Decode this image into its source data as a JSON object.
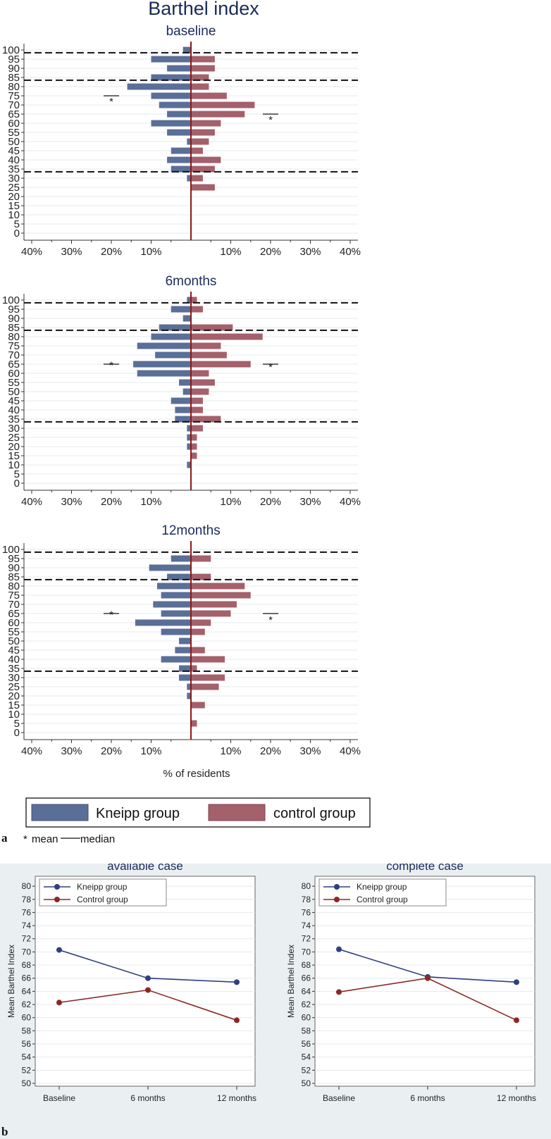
{
  "colors": {
    "kneipp": "#5a6f97",
    "control": "#a4606b",
    "median_line": "#8b1a1a",
    "navy": "#1b2a5c",
    "panel_b_bg": "#eaf0f2",
    "line_kneipp": "#2f3f7f",
    "line_control": "#8b2828"
  },
  "figure_a": {
    "title": "Barthel index",
    "panel_label": "a",
    "x_ticks_left": [
      "40%",
      "30%",
      "20%",
      "10%"
    ],
    "x_ticks_right": [
      "10%",
      "20%",
      "30%",
      "40%"
    ],
    "xlabel": "% of residents",
    "legend": {
      "kneipp": "Kneipp group",
      "control": "control group"
    },
    "footnote_mean_symbol": "*",
    "footnote_mean_text": "mean",
    "footnote_median_text": "median",
    "star": "*"
  },
  "figure_b": {
    "panel_label": "b",
    "ylabel": "Mean Barthel Index",
    "legend": {
      "kneipp": "Kneipp group",
      "control": "Control group"
    }
  },
  "chart_data": [
    {
      "type": "bar",
      "title": "baseline",
      "orientation": "horizontal-back-to-back",
      "categories": [
        100,
        95,
        90,
        85,
        80,
        75,
        70,
        65,
        60,
        55,
        50,
        45,
        40,
        35,
        30,
        25,
        20,
        15,
        10,
        5,
        0
      ],
      "series": [
        {
          "name": "Kneipp group",
          "values": [
            2,
            10,
            6,
            10,
            16,
            10,
            8,
            6,
            10,
            6,
            1,
            5,
            6,
            5,
            1,
            0,
            0,
            0,
            0,
            0,
            0
          ]
        },
        {
          "name": "control group",
          "values": [
            0,
            6,
            6,
            4.5,
            4.5,
            9,
            16,
            13.5,
            7.5,
            6,
            4.5,
            3,
            7.5,
            6,
            3,
            6,
            0,
            0,
            0,
            0,
            0
          ]
        }
      ],
      "dashed_lines": [
        98.5,
        83.5,
        33.5
      ],
      "mean_marks": {
        "kneipp": 73.5,
        "control": 63.5
      },
      "median_marks": {
        "kneipp": 75,
        "control": 65
      },
      "xlim": [
        -40,
        40
      ]
    },
    {
      "type": "bar",
      "title": "6months",
      "orientation": "horizontal-back-to-back",
      "categories": [
        100,
        95,
        90,
        85,
        80,
        75,
        70,
        65,
        60,
        55,
        50,
        45,
        40,
        35,
        30,
        25,
        20,
        15,
        10,
        5,
        0
      ],
      "series": [
        {
          "name": "Kneipp group",
          "values": [
            1,
            5,
            2,
            8,
            10,
            13.5,
            9,
            14.5,
            13.5,
            3,
            2,
            5,
            4,
            4,
            1,
            1,
            1,
            0,
            1,
            0,
            0
          ]
        },
        {
          "name": "control group",
          "values": [
            1.5,
            3,
            0,
            10.5,
            18,
            7.5,
            9,
            15,
            4.5,
            6,
            4.5,
            3,
            3,
            7.5,
            3,
            1.5,
            1.5,
            1.5,
            0,
            0,
            0
          ]
        }
      ],
      "dashed_lines": [
        98.5,
        83.5,
        33.5
      ],
      "mean_marks": {
        "kneipp": 66,
        "control": 65
      },
      "median_marks": {
        "kneipp": 65,
        "control": 65
      },
      "xlim": [
        -40,
        40
      ]
    },
    {
      "type": "bar",
      "title": "12months",
      "orientation": "horizontal-back-to-back",
      "categories": [
        100,
        95,
        90,
        85,
        80,
        75,
        70,
        65,
        60,
        55,
        50,
        45,
        40,
        35,
        30,
        25,
        20,
        15,
        10,
        5,
        0
      ],
      "series": [
        {
          "name": "Kneipp group",
          "values": [
            0,
            5,
            10.5,
            6,
            8.5,
            7.5,
            9.5,
            7.5,
            14,
            7.5,
            3,
            4,
            7.5,
            3,
            3,
            1,
            1,
            0,
            0,
            0,
            0
          ]
        },
        {
          "name": "control group",
          "values": [
            0,
            5,
            0,
            5,
            13.5,
            15,
            11.5,
            10,
            5,
            3.5,
            0,
            3.5,
            8.5,
            1.5,
            8.5,
            7,
            0,
            3.5,
            0,
            1.5,
            0
          ]
        }
      ],
      "dashed_lines": [
        98.5,
        83.5,
        33.5
      ],
      "mean_marks": {
        "kneipp": 66,
        "control": 63
      },
      "median_marks": {
        "kneipp": 65,
        "control": 65
      },
      "xlim": [
        -40,
        40
      ]
    },
    {
      "type": "line",
      "title": "available case",
      "categories": [
        "Baseline",
        "6 months",
        "12 months"
      ],
      "series": [
        {
          "name": "Kneipp group",
          "values": [
            70.3,
            66.0,
            65.4
          ]
        },
        {
          "name": "Control group",
          "values": [
            62.3,
            64.2,
            59.6
          ]
        }
      ],
      "ylabel": "Mean Barthel Index",
      "ylim": [
        50,
        80
      ],
      "yticks": [
        50,
        52,
        54,
        56,
        58,
        60,
        62,
        64,
        66,
        68,
        70,
        72,
        74,
        76,
        78,
        80
      ],
      "grid": true,
      "legend_position": "top-left"
    },
    {
      "type": "line",
      "title": "complete case",
      "categories": [
        "Baseline",
        "6 months",
        "12 months"
      ],
      "series": [
        {
          "name": "Kneipp group",
          "values": [
            70.4,
            66.2,
            65.4
          ]
        },
        {
          "name": "Control group",
          "values": [
            63.9,
            66.0,
            59.6
          ]
        }
      ],
      "ylabel": "Mean Barthel Index",
      "ylim": [
        50,
        80
      ],
      "yticks": [
        50,
        52,
        54,
        56,
        58,
        60,
        62,
        64,
        66,
        68,
        70,
        72,
        74,
        76,
        78,
        80
      ],
      "grid": true,
      "legend_position": "top-left"
    }
  ]
}
